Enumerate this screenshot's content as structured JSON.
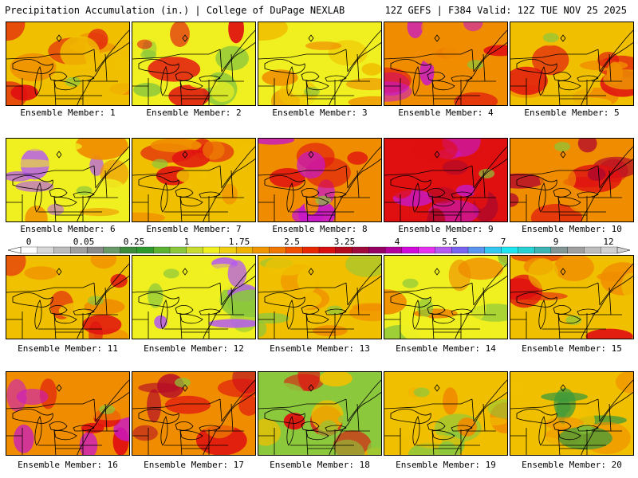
{
  "header": {
    "title": "Precipitation Accumulation (in.) | College of DuPage NEXLAB",
    "run_info": "12Z GEFS | F384 Valid: 12Z TUE NOV 25 2025"
  },
  "colorbar": {
    "labels": [
      "0",
      "0.05",
      "0.25",
      "1",
      "1.75",
      "2.5",
      "3.25",
      "4",
      "5.5",
      "7",
      "9",
      "12"
    ],
    "colors": [
      "#ffffff",
      "#d8d8d8",
      "#bdbdbd",
      "#a0a0a0",
      "#8a8a8a",
      "#6a9a6a",
      "#3c8c3c",
      "#2e9a2e",
      "#5ab432",
      "#8cc83c",
      "#c8dc32",
      "#f0f020",
      "#f0d010",
      "#f0b400",
      "#f09600",
      "#f07800",
      "#f05000",
      "#e82800",
      "#d81010",
      "#b40a1e",
      "#a00a3c",
      "#960064",
      "#b4009c",
      "#d20adc",
      "#e632f0",
      "#b45af0",
      "#7864f0",
      "#5a96f0",
      "#32c8f0",
      "#1ee6f0",
      "#28d2d2",
      "#3cb4b4",
      "#829696",
      "#a0a0a0",
      "#bebebe",
      "#d2d2d2"
    ]
  },
  "members": [
    {
      "label": "Ensemble Member: 1"
    },
    {
      "label": "Ensemble Member: 2"
    },
    {
      "label": "Ensemble Member: 3"
    },
    {
      "label": "Ensemble Member: 4"
    },
    {
      "label": "Ensemble Member: 5"
    },
    {
      "label": "Ensemble Member: 6"
    },
    {
      "label": "Ensemble Member: 7"
    },
    {
      "label": "Ensemble Member: 8"
    },
    {
      "label": "Ensemble Member: 9"
    },
    {
      "label": "Ensemble Member: 10"
    },
    {
      "label": "Ensemble Member: 11"
    },
    {
      "label": "Ensemble Member: 12"
    },
    {
      "label": "Ensemble Member: 13"
    },
    {
      "label": "Ensemble Member: 14"
    },
    {
      "label": "Ensemble Member: 15"
    },
    {
      "label": "Ensemble Member: 16"
    },
    {
      "label": "Ensemble Member: 17"
    },
    {
      "label": "Ensemble Member: 18"
    },
    {
      "label": "Ensemble Member: 19"
    },
    {
      "label": "Ensemble Member: 20"
    }
  ],
  "map_colors": {
    "light_green": "#8cc83c",
    "green": "#3c9a3c",
    "yellow": "#f0f020",
    "gold": "#f0c000",
    "orange": "#f08c00",
    "red_orange": "#f05000",
    "red": "#e01010",
    "dark_red": "#b40a28",
    "magenta": "#c818c8",
    "purple": "#b45af0",
    "cyan": "#32d2f0"
  }
}
